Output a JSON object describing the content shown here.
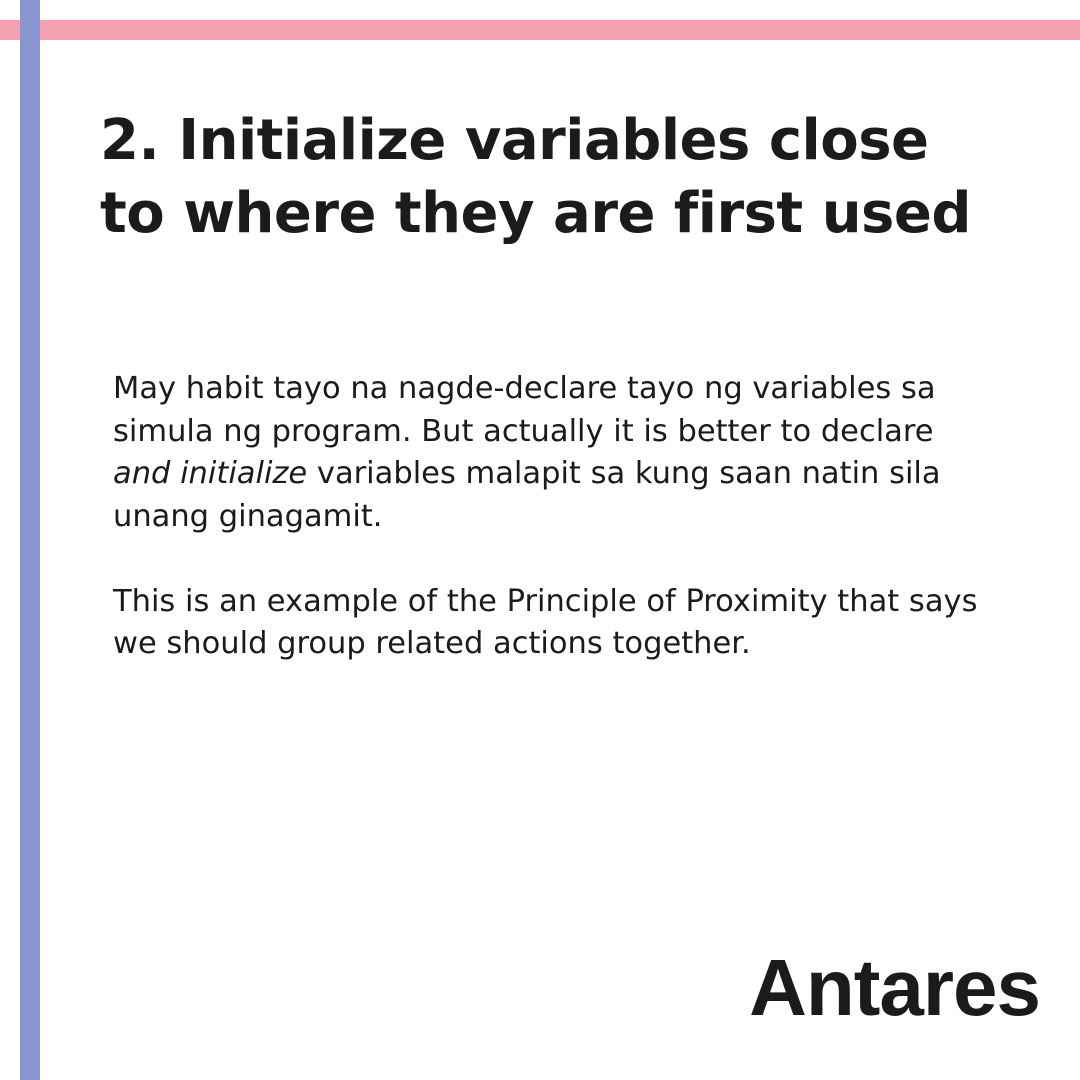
{
  "slide": {
    "title": "2. Initialize variables close to where they are first used",
    "paragraph_1": {
      "before_emphasis": "May habit tayo na nagde-declare tayo ng variables sa simula ng program. But actually it is better to declare ",
      "emphasis": "and initialize",
      "after_emphasis": " variables malapit sa kung saan natin sila unang ginagamit."
    },
    "paragraph_2": "This is an example of the Principle of Proximity that says we should group related actions together.",
    "brand": "Antares"
  },
  "colors": {
    "top_accent": "#f4a2b0",
    "left_accent": "#8a94d0",
    "text": "#1b1b1b",
    "background": "#ffffff"
  }
}
